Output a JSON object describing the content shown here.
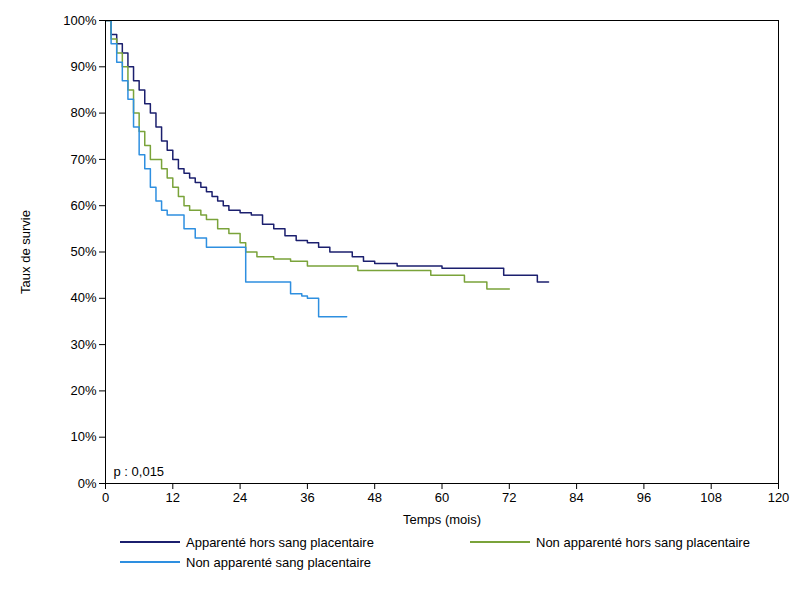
{
  "chart_data": {
    "type": "line",
    "line_style": "step",
    "x_label": "Temps (mois)",
    "y_label": "Taux de survie",
    "annotation": "p : 0,015",
    "legend": "bottom",
    "grid": false,
    "xlim": [
      0,
      120
    ],
    "xticks": [
      0,
      12,
      24,
      36,
      48,
      60,
      72,
      84,
      96,
      108,
      120
    ],
    "ylim": [
      0,
      100
    ],
    "yticks": [
      {
        "value": 0,
        "label": "0%"
      },
      {
        "value": 10,
        "label": "10%"
      },
      {
        "value": 20,
        "label": "20%"
      },
      {
        "value": 30,
        "label": "30%"
      },
      {
        "value": 40,
        "label": "40%"
      },
      {
        "value": 50,
        "label": "50%"
      },
      {
        "value": 60,
        "label": "60%"
      },
      {
        "value": 70,
        "label": "70%"
      },
      {
        "value": 80,
        "label": "80%"
      },
      {
        "value": 90,
        "label": "90%"
      },
      {
        "value": 100,
        "label": "100%"
      }
    ],
    "series": [
      {
        "name": "Apparenté hors sang placentaire",
        "color": "#1b1f6e",
        "x": [
          0,
          1,
          2,
          3,
          4,
          5,
          6,
          7,
          8,
          9,
          10,
          11,
          12,
          13,
          14,
          15,
          16,
          17,
          18,
          19,
          20,
          21,
          22,
          24,
          26,
          28,
          30,
          32,
          34,
          36,
          38,
          40,
          44,
          46,
          48,
          52,
          60,
          71,
          77,
          79
        ],
        "values": [
          100,
          97,
          95,
          93,
          90,
          87,
          85,
          82,
          80,
          77,
          74,
          72,
          70,
          68,
          67,
          66,
          65,
          64,
          63,
          62,
          61,
          60,
          59,
          58.5,
          58,
          56,
          55,
          53.5,
          52.5,
          52,
          51,
          50,
          49,
          48,
          47.5,
          47,
          46.5,
          45,
          43.5,
          43.5
        ]
      },
      {
        "name": "Non apparenté hors sang placentaire",
        "color": "#7aa33a",
        "x": [
          0,
          1,
          2,
          3,
          4,
          5,
          6,
          7,
          8,
          10,
          11,
          12,
          13,
          14,
          15,
          17,
          18,
          20,
          22,
          24,
          25,
          27,
          30,
          33,
          36,
          45,
          58,
          61,
          64,
          68,
          72
        ],
        "values": [
          100,
          96,
          93,
          90,
          85,
          80,
          76,
          73,
          70,
          68,
          66,
          64,
          62,
          60,
          59,
          58,
          57,
          55,
          54,
          52,
          50,
          49,
          48.5,
          48,
          47,
          46,
          45,
          45,
          43.5,
          42,
          42
        ]
      },
      {
        "name": "Non apparenté sang placentaire",
        "color": "#2e8fe0",
        "x": [
          0,
          1,
          2,
          3,
          4,
          5,
          6,
          7,
          8,
          9,
          10,
          11,
          14,
          16,
          18,
          25,
          33,
          35,
          36,
          38,
          43
        ],
        "values": [
          100,
          95,
          91,
          87,
          83,
          77,
          71,
          68,
          64,
          61,
          59,
          58,
          55,
          53,
          51,
          43.5,
          41,
          40.5,
          40,
          36,
          36
        ]
      }
    ]
  }
}
